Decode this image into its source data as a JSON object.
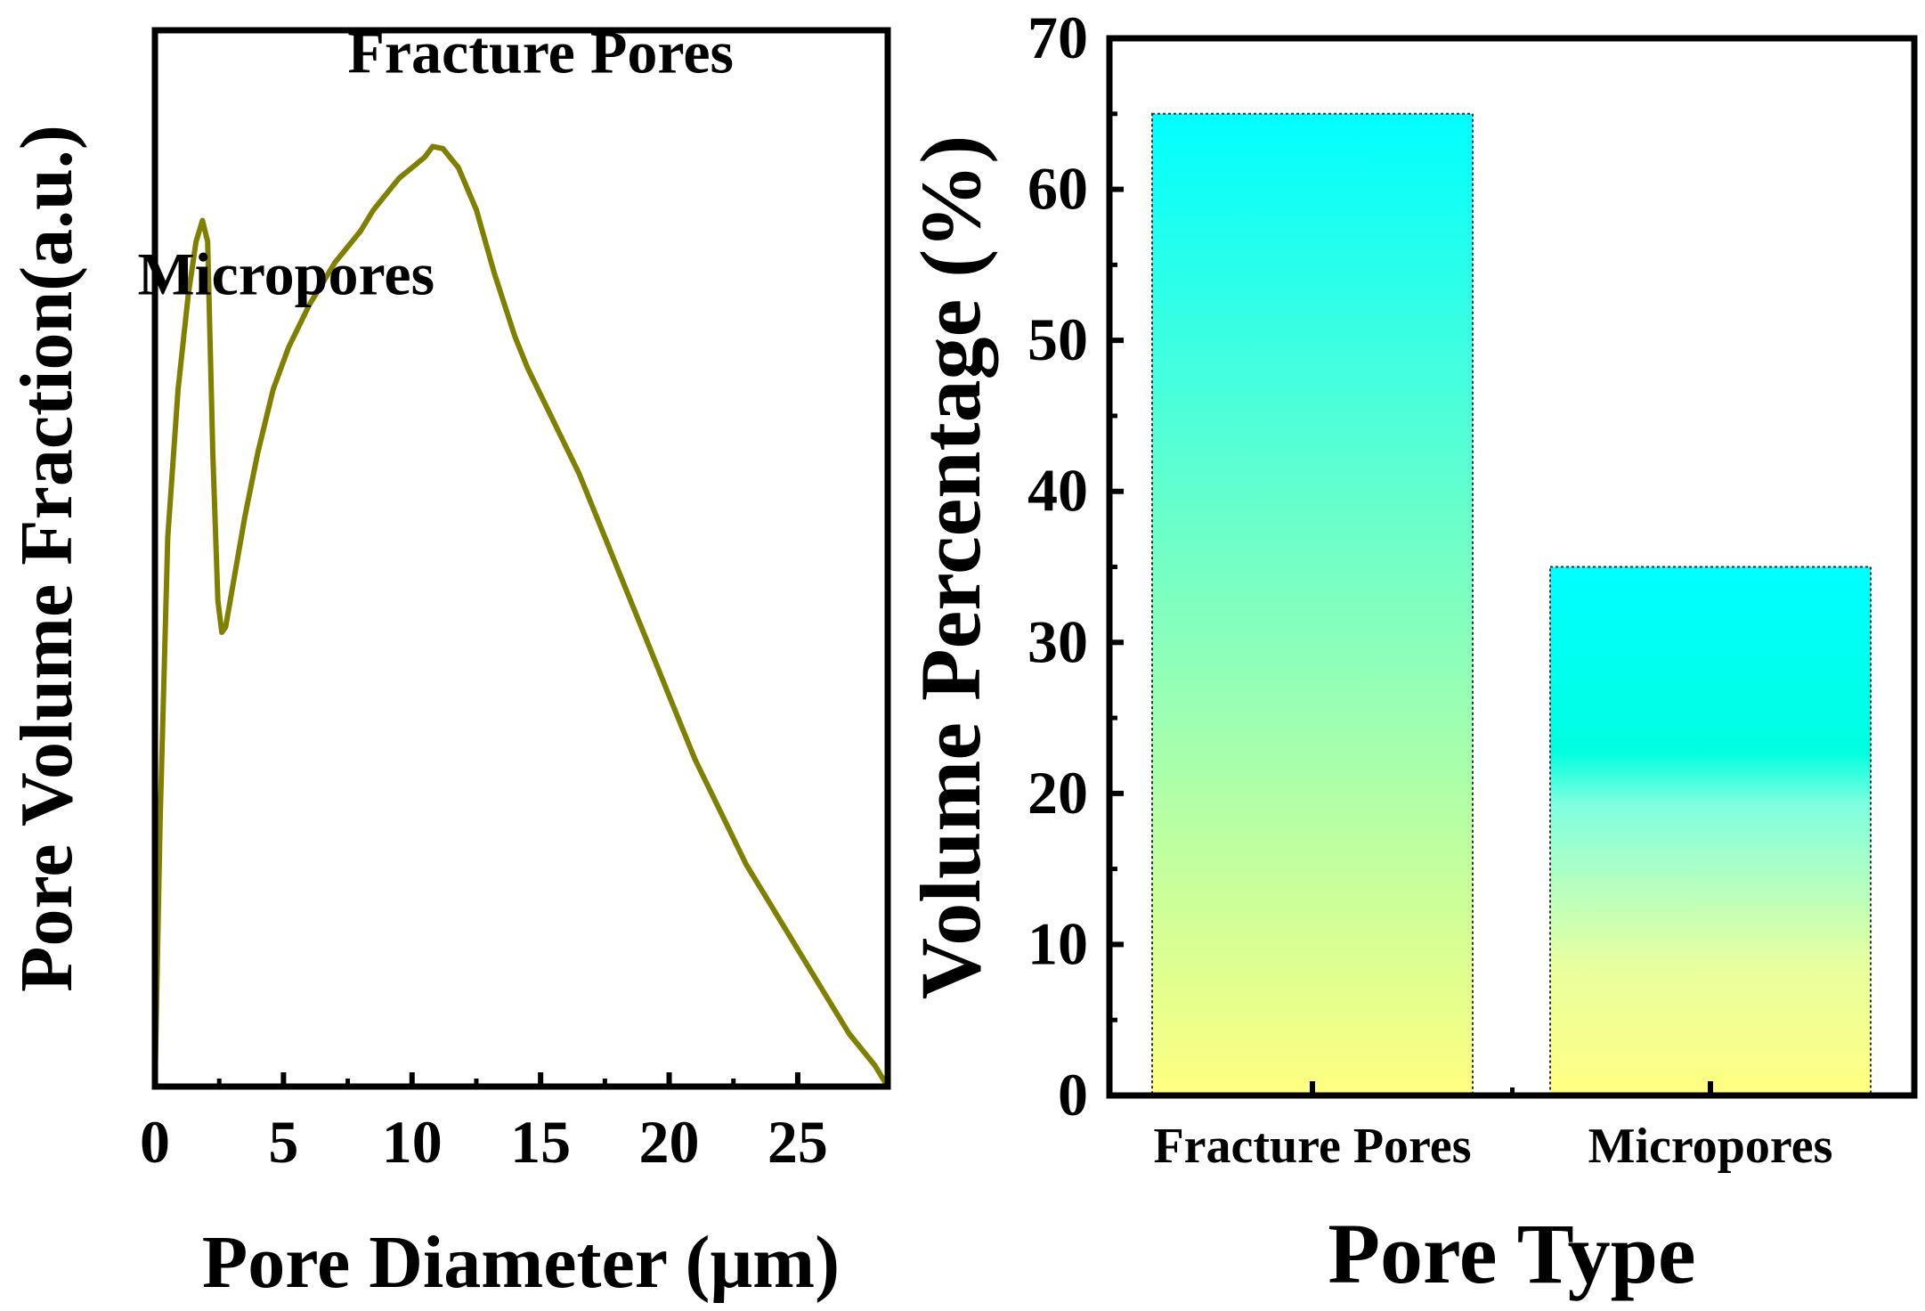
{
  "chart_data": [
    {
      "type": "line",
      "xlabel": "Pore Diameter (μm)",
      "ylabel": "Pore Volume Fraction(a.u.)",
      "xlim": [
        0,
        28.5
      ],
      "ylim": [
        0,
        1.0
      ],
      "xticks": [
        0,
        5,
        10,
        15,
        20,
        25
      ],
      "xtick_labels": [
        "0",
        "5",
        "10",
        "15",
        "20",
        "25"
      ],
      "y_tick_labels_shown": false,
      "series": [
        {
          "color": "#808000",
          "x": [
            0.0,
            0.2,
            0.5,
            0.9,
            1.3,
            1.6,
            1.85,
            2.05,
            2.25,
            2.45,
            2.6,
            2.75,
            3.0,
            3.5,
            4.0,
            4.6,
            5.2,
            6.0,
            7.0,
            8.0,
            8.5,
            9.5,
            10.0,
            10.5,
            10.8,
            11.2,
            11.8,
            12.5,
            13.2,
            14.0,
            14.5,
            15.5,
            16.5,
            17.5,
            18.5,
            19.0,
            20.0,
            21.0,
            22.0,
            23.0,
            24.0,
            25.0,
            26.0,
            27.0,
            28.0,
            28.5
          ],
          "y": [
            0.0,
            0.25,
            0.52,
            0.66,
            0.75,
            0.8,
            0.82,
            0.8,
            0.6,
            0.46,
            0.43,
            0.435,
            0.47,
            0.54,
            0.6,
            0.66,
            0.7,
            0.74,
            0.78,
            0.81,
            0.83,
            0.86,
            0.87,
            0.88,
            0.89,
            0.888,
            0.87,
            0.83,
            0.77,
            0.71,
            0.68,
            0.63,
            0.58,
            0.52,
            0.46,
            0.43,
            0.37,
            0.31,
            0.26,
            0.21,
            0.17,
            0.13,
            0.09,
            0.05,
            0.02,
            0.0
          ]
        }
      ],
      "annotations": [
        {
          "text": "Fracture Pores",
          "x": 15.0,
          "y": 0.96
        },
        {
          "text": "Micropores",
          "x": 5.1,
          "y": 0.75
        }
      ]
    },
    {
      "type": "bar",
      "xlabel": "Pore Type",
      "ylabel": "Volume Percentage (%)",
      "ylim": [
        0,
        70
      ],
      "yticks": [
        0,
        10,
        20,
        30,
        40,
        50,
        60,
        70
      ],
      "ytick_labels": [
        "0",
        "10",
        "20",
        "30",
        "40",
        "50",
        "60",
        "70"
      ],
      "categories": [
        "Fracture Pores",
        "Micropores"
      ],
      "values": [
        65,
        35
      ],
      "gradient_colors": {
        "top": "#00ffff",
        "bottom": "#ffff80"
      }
    }
  ]
}
